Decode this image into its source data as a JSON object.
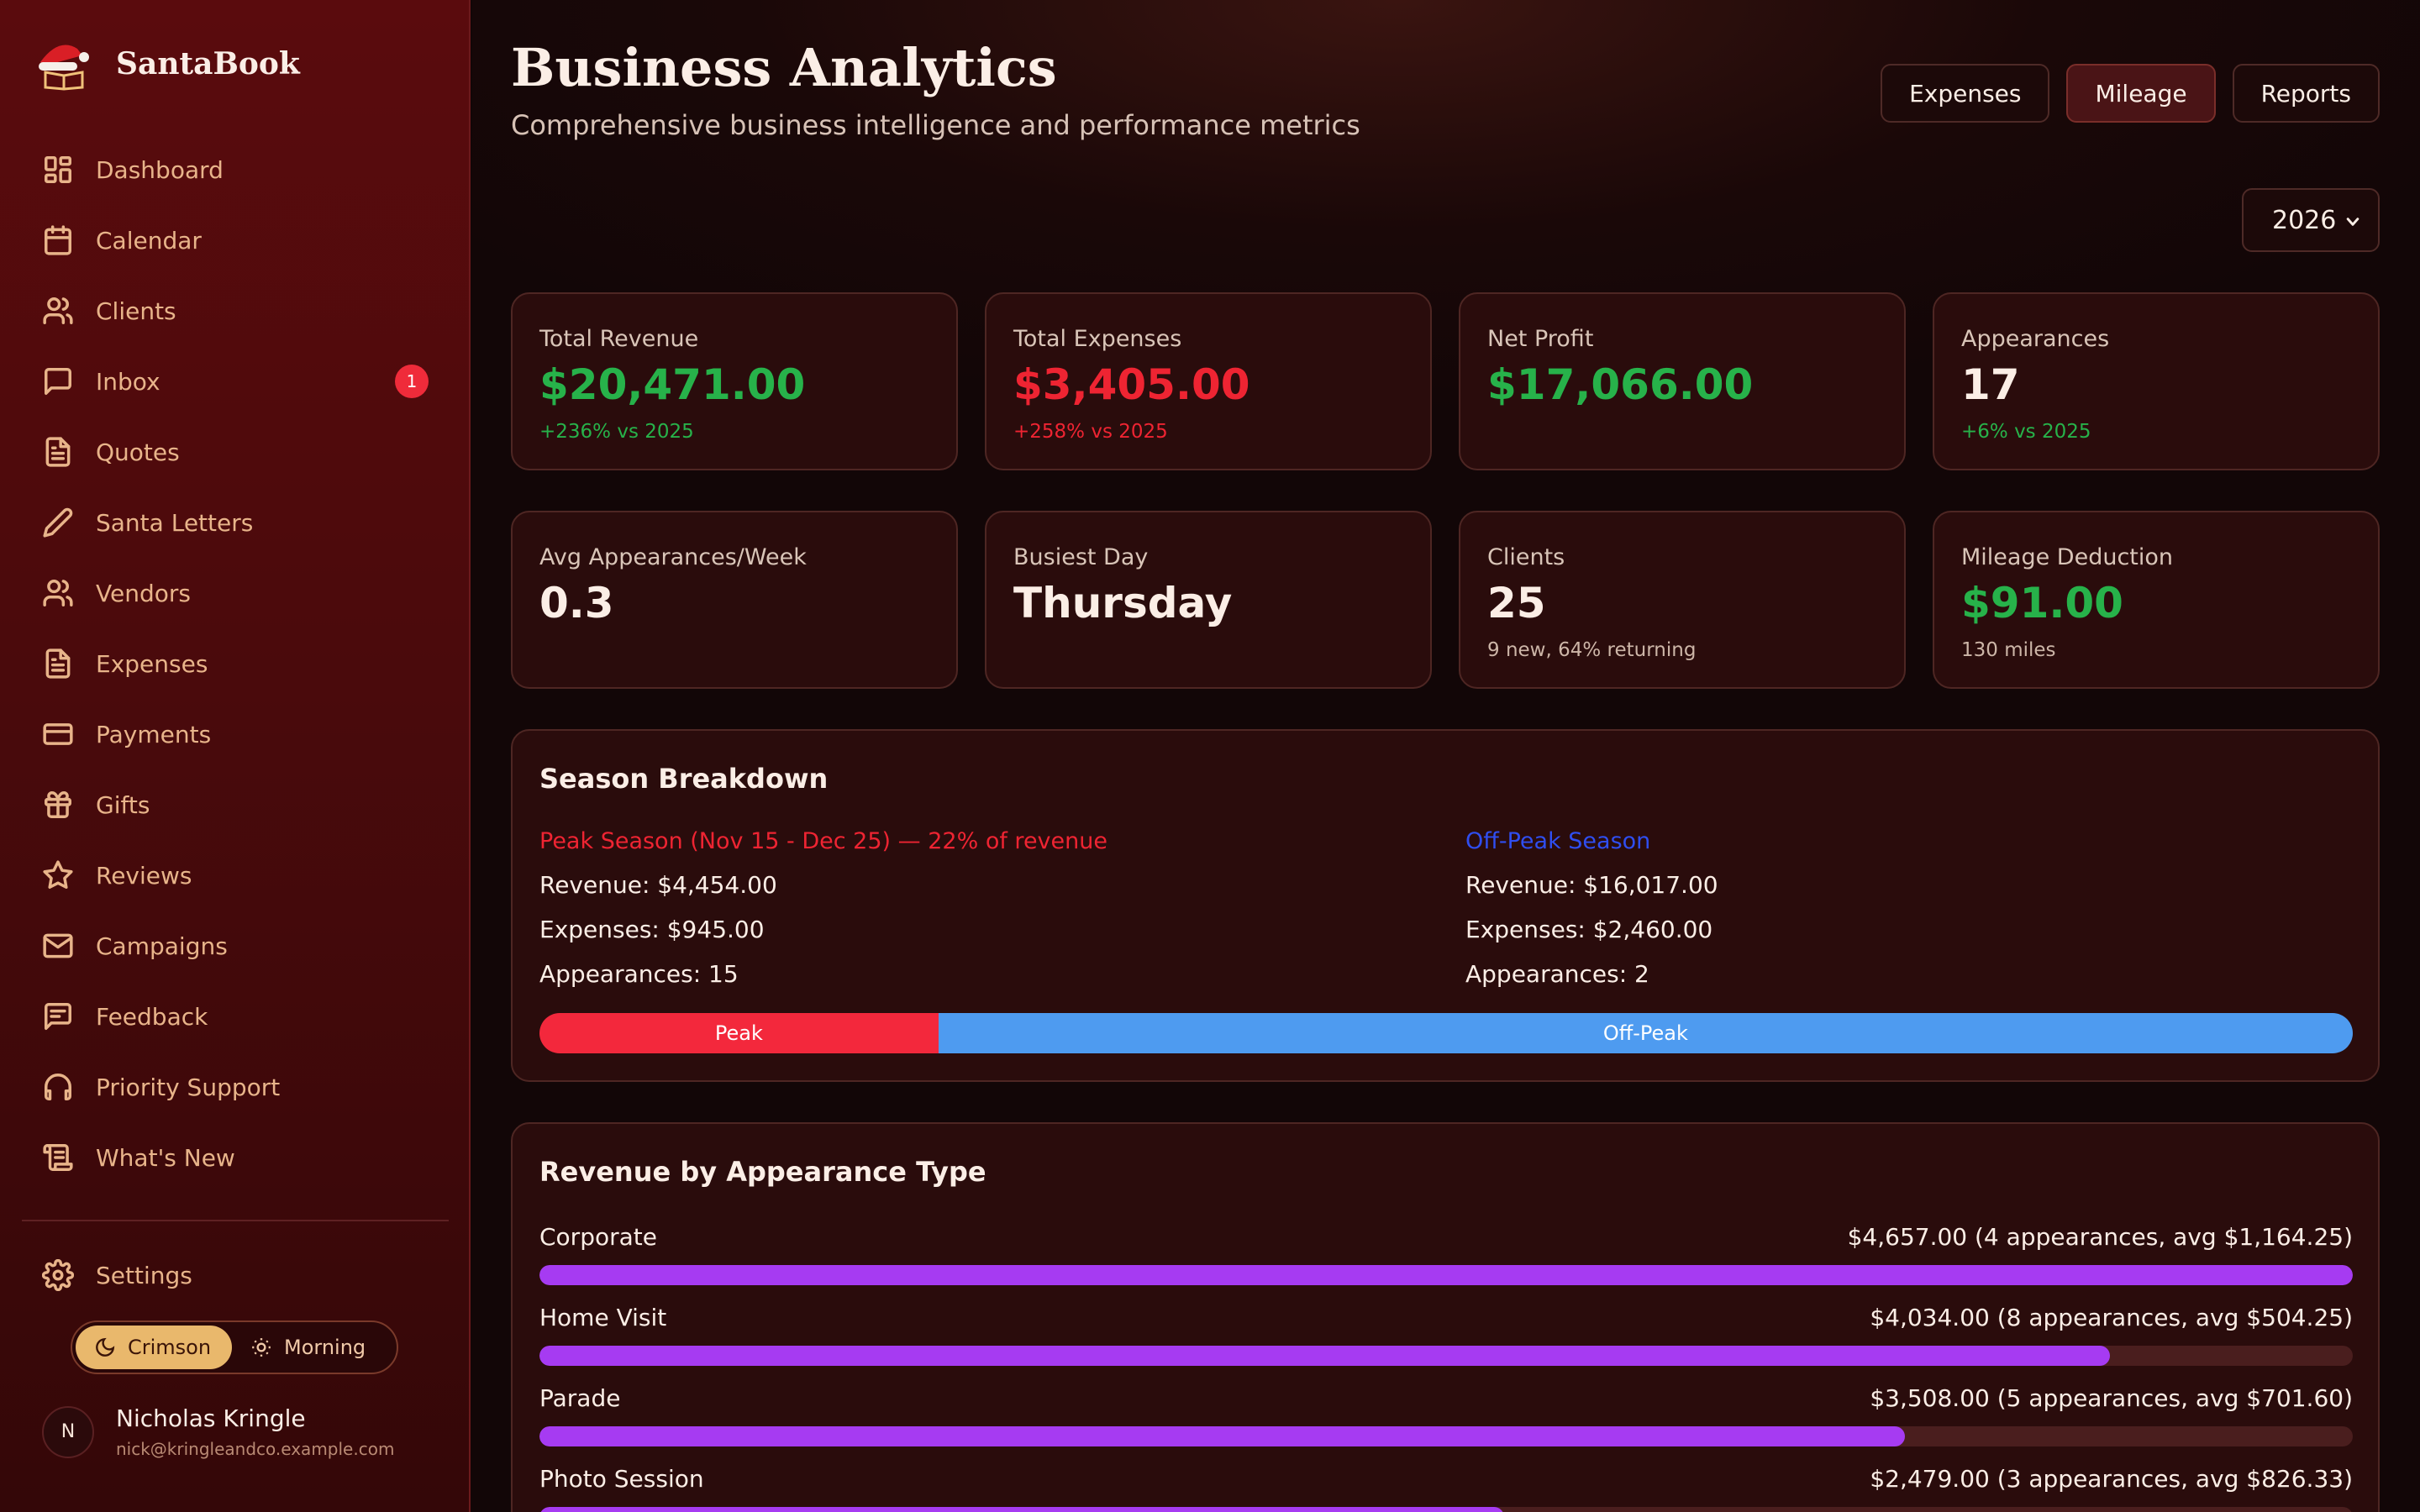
{
  "brand": {
    "name": "SantaBook"
  },
  "nav": [
    {
      "label": "Dashboard",
      "icon": "dashboard-icon"
    },
    {
      "label": "Calendar",
      "icon": "calendar-icon"
    },
    {
      "label": "Clients",
      "icon": "users-icon"
    },
    {
      "label": "Inbox",
      "icon": "message-icon",
      "badge": "1"
    },
    {
      "label": "Quotes",
      "icon": "document-icon"
    },
    {
      "label": "Santa Letters",
      "icon": "pen-icon"
    },
    {
      "label": "Vendors",
      "icon": "users-icon"
    },
    {
      "label": "Expenses",
      "icon": "document-icon"
    },
    {
      "label": "Payments",
      "icon": "credit-card-icon"
    },
    {
      "label": "Gifts",
      "icon": "gift-icon"
    },
    {
      "label": "Reviews",
      "icon": "star-icon"
    },
    {
      "label": "Campaigns",
      "icon": "mail-icon"
    },
    {
      "label": "Feedback",
      "icon": "message-lines-icon"
    },
    {
      "label": "Priority Support",
      "icon": "headphones-icon"
    },
    {
      "label": "What's New",
      "icon": "scroll-icon"
    }
  ],
  "settings": {
    "label": "Settings"
  },
  "theme": {
    "crimson": "Crimson",
    "morning": "Morning",
    "active": "Crimson"
  },
  "user": {
    "initial": "N",
    "name": "Nicholas Kringle",
    "email": "nick@kringleandco.example.com"
  },
  "header": {
    "title": "Business Analytics",
    "subtitle": "Comprehensive business intelligence and performance metrics",
    "buttons": [
      "Expenses",
      "Mileage",
      "Reports"
    ],
    "year": "2026"
  },
  "stats": [
    {
      "label": "Total Revenue",
      "value": "$20,471.00",
      "sub": "+236% vs 2025",
      "value_color": "#27b24a",
      "sub_color": "#27b24a"
    },
    {
      "label": "Total Expenses",
      "value": "$3,405.00",
      "sub": "+258% vs 2025",
      "value_color": "#ee2432",
      "sub_color": "#ee2432"
    },
    {
      "label": "Net Profit",
      "value": "$17,066.00",
      "sub": "",
      "value_color": "#27b24a"
    },
    {
      "label": "Appearances",
      "value": "17",
      "sub": "+6% vs 2025",
      "sub_color": "#27b24a"
    },
    {
      "label": "Avg Appearances/Week",
      "value": "0.3",
      "sub": ""
    },
    {
      "label": "Busiest Day",
      "value": "Thursday",
      "sub": ""
    },
    {
      "label": "Clients",
      "value": "25",
      "sub": "9 new, 64% returning"
    },
    {
      "label": "Mileage Deduction",
      "value": "$91.00",
      "sub": "130 miles",
      "value_color": "#27b24a"
    }
  ],
  "season": {
    "title": "Season Breakdown",
    "peak": {
      "heading": "Peak Season (Nov 15 - Dec 25) — 22% of revenue",
      "revenue": "Revenue: $4,454.00",
      "expenses": "Expenses: $945.00",
      "appearances": "Appearances: 15",
      "color": "#ee2432"
    },
    "offpeak": {
      "heading": "Off-Peak Season",
      "revenue": "Revenue: $16,017.00",
      "expenses": "Expenses: $2,460.00",
      "appearances": "Appearances: 2",
      "color": "#2f4ef0"
    },
    "bar": {
      "peak_label": "Peak",
      "off_label": "Off-Peak",
      "peak_share": 0.22
    }
  },
  "revenue_by_type": {
    "title": "Revenue by Appearance Type",
    "rows": [
      {
        "label": "Corporate",
        "summary": "$4,657.00 (4 appearances, avg $1,164.25)",
        "share": 1.0
      },
      {
        "label": "Home Visit",
        "summary": "$4,034.00 (8 appearances, avg $504.25)",
        "share": 0.866
      },
      {
        "label": "Parade",
        "summary": "$3,508.00 (5 appearances, avg $701.60)",
        "share": 0.753
      },
      {
        "label": "Photo Session",
        "summary": "$2,479.00 (3 appearances, avg $826.33)",
        "share": 0.532
      }
    ]
  }
}
